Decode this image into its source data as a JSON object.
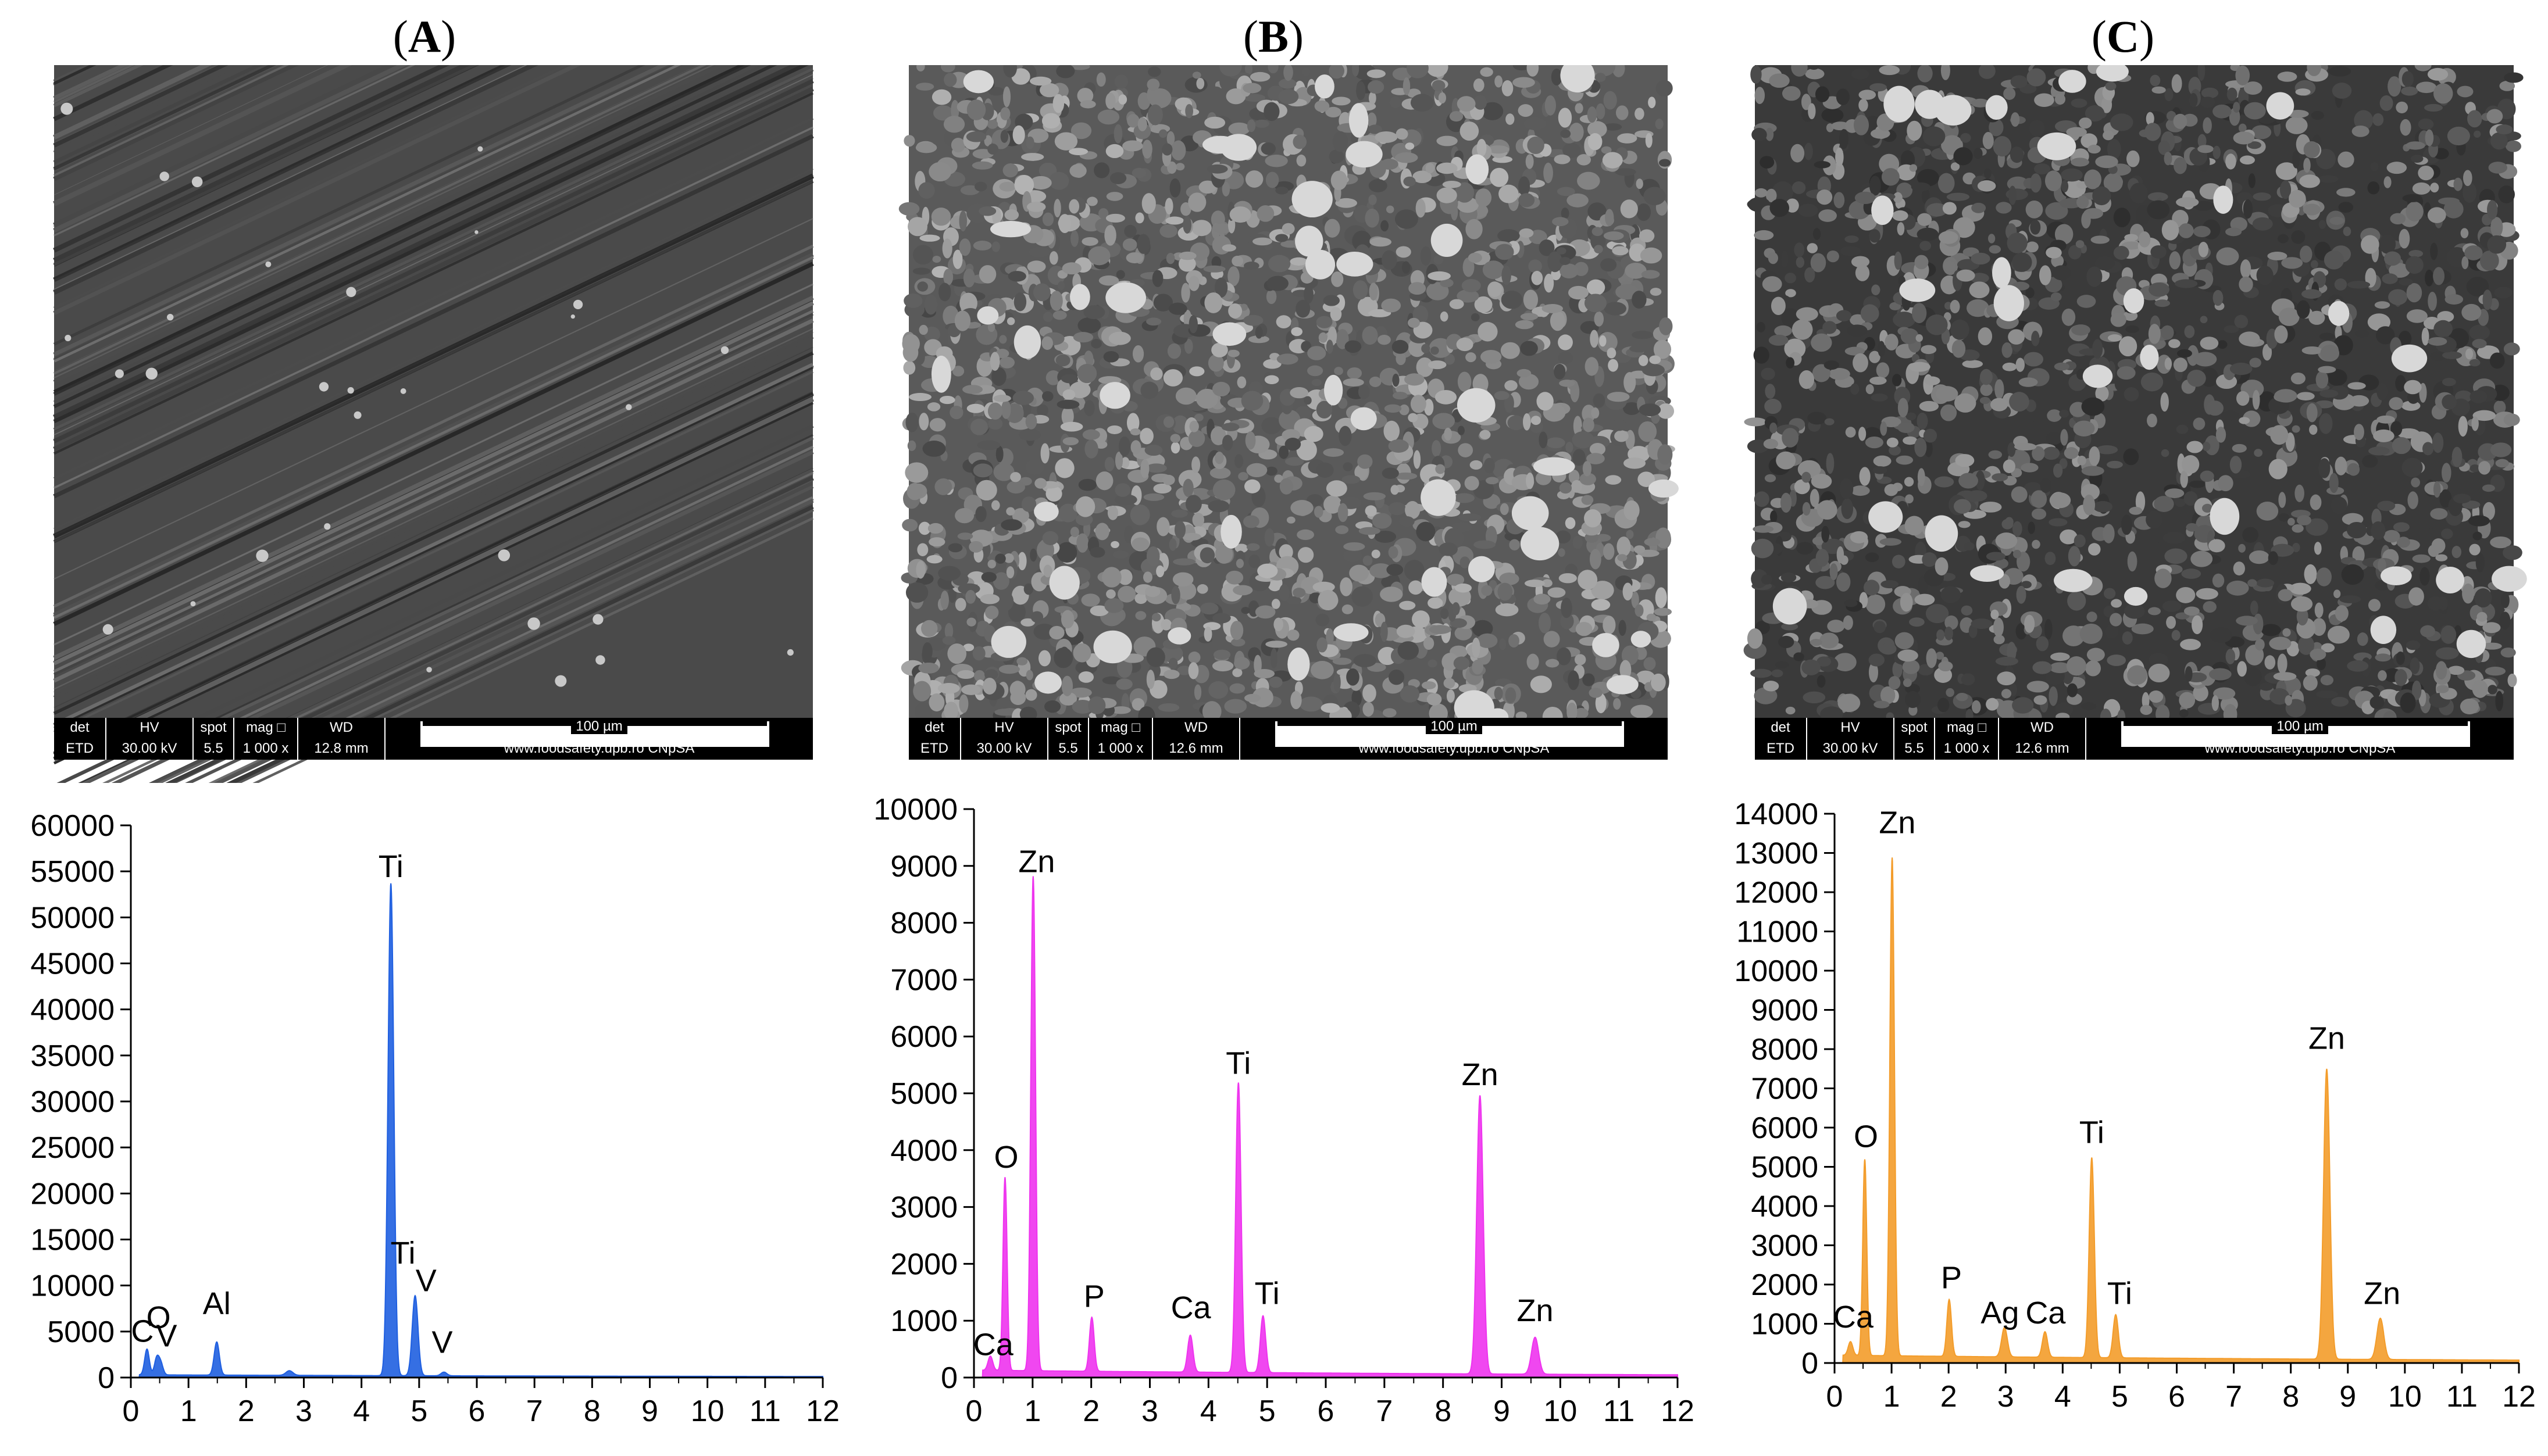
{
  "panels": [
    {
      "label": "A",
      "sem": {
        "det": "det",
        "det_val": "ETD",
        "hv": "HV",
        "hv_val": "30.00 kV",
        "spot": "spot",
        "spot_val": "5.5",
        "mag": "mag □",
        "mag_val": "1 000 x",
        "wd": "WD",
        "wd_val": "12.8 mm",
        "scale": "100 µm",
        "footer": "www.foodsafety.upb.ro CNpSA"
      },
      "color": "#1f5fe0"
    },
    {
      "label": "B",
      "sem": {
        "det": "det",
        "det_val": "ETD",
        "hv": "HV",
        "hv_val": "30.00 kV",
        "spot": "spot",
        "spot_val": "5.5",
        "mag": "mag □",
        "mag_val": "1 000 x",
        "wd": "WD",
        "wd_val": "12.6 mm",
        "scale": "100 µm",
        "footer": "www.foodsafety.upb.ro CNpSA"
      },
      "color": "#ee33ee"
    },
    {
      "label": "C",
      "sem": {
        "det": "det",
        "det_val": "ETD",
        "hv": "HV",
        "hv_val": "30.00 kV",
        "spot": "spot",
        "spot_val": "5.5",
        "mag": "mag □",
        "mag_val": "1 000 x",
        "wd": "WD",
        "wd_val": "12.6 mm",
        "scale": "100 µm",
        "footer": "www.foodsafety.upb.ro CNpSA"
      },
      "color": "#f39c2a"
    }
  ],
  "chart_data": [
    {
      "type": "area",
      "panel": "A",
      "xlabel": "",
      "ylabel": "",
      "xlim": [
        0,
        12
      ],
      "ylim": [
        0,
        60000
      ],
      "xticks": [
        0,
        1,
        2,
        3,
        4,
        5,
        6,
        7,
        8,
        9,
        10,
        11,
        12
      ],
      "yticks": [
        0,
        5000,
        10000,
        15000,
        20000,
        25000,
        30000,
        35000,
        40000,
        45000,
        50000,
        55000,
        60000
      ],
      "peaks": [
        {
          "x": 0.28,
          "y": 2800,
          "width": 0.04
        },
        {
          "x": 0.45,
          "y": 1800,
          "width": 0.04
        },
        {
          "x": 0.52,
          "y": 1200,
          "width": 0.04
        },
        {
          "x": 1.49,
          "y": 3600,
          "width": 0.045
        },
        {
          "x": 2.75,
          "y": 500,
          "width": 0.06
        },
        {
          "x": 4.51,
          "y": 53500,
          "width": 0.05
        },
        {
          "x": 4.93,
          "y": 8700,
          "width": 0.05
        },
        {
          "x": 5.43,
          "y": 400,
          "width": 0.05
        }
      ],
      "baseline": 300,
      "annotations": [
        {
          "text": "Ti",
          "x": 4.51,
          "y": 53500
        },
        {
          "text": "Ti",
          "x": 4.72,
          "y": 11500
        },
        {
          "text": "V",
          "x": 5.12,
          "y": 8500
        },
        {
          "text": "Al",
          "x": 1.49,
          "y": 6000
        },
        {
          "text": "O",
          "x": 0.48,
          "y": 4500
        },
        {
          "text": "C",
          "x": 0.2,
          "y": 3000
        },
        {
          "text": "V",
          "x": 0.62,
          "y": 2500
        },
        {
          "text": "V",
          "x": 5.4,
          "y": 1800
        }
      ]
    },
    {
      "type": "area",
      "panel": "B",
      "xlabel": "",
      "ylabel": "",
      "xlim": [
        0,
        12
      ],
      "ylim": [
        0,
        10000
      ],
      "xticks": [
        0,
        1,
        2,
        3,
        4,
        5,
        6,
        7,
        8,
        9,
        10,
        11,
        12
      ],
      "yticks": [
        0,
        1000,
        2000,
        3000,
        4000,
        5000,
        6000,
        7000,
        8000,
        9000,
        10000
      ],
      "peaks": [
        {
          "x": 0.28,
          "y": 250,
          "width": 0.04
        },
        {
          "x": 0.53,
          "y": 3400,
          "width": 0.035
        },
        {
          "x": 1.01,
          "y": 8700,
          "width": 0.04
        },
        {
          "x": 2.01,
          "y": 950,
          "width": 0.04
        },
        {
          "x": 3.69,
          "y": 650,
          "width": 0.045
        },
        {
          "x": 4.51,
          "y": 5100,
          "width": 0.045
        },
        {
          "x": 4.93,
          "y": 1000,
          "width": 0.045
        },
        {
          "x": 8.63,
          "y": 4900,
          "width": 0.055
        },
        {
          "x": 9.57,
          "y": 650,
          "width": 0.06
        }
      ],
      "baseline": 130,
      "annotations": [
        {
          "text": "Zn",
          "x": 1.07,
          "y": 8750
        },
        {
          "text": "O",
          "x": 0.55,
          "y": 3550
        },
        {
          "text": "P",
          "x": 2.05,
          "y": 1100
        },
        {
          "text": "Ca",
          "x": 3.7,
          "y": 900
        },
        {
          "text": "Ti",
          "x": 4.51,
          "y": 5200
        },
        {
          "text": "Ti",
          "x": 5.0,
          "y": 1150
        },
        {
          "text": "Zn",
          "x": 8.63,
          "y": 5000
        },
        {
          "text": "Zn",
          "x": 9.57,
          "y": 850
        },
        {
          "text": "Ca",
          "x": 0.33,
          "y": 250
        }
      ]
    },
    {
      "type": "area",
      "panel": "C",
      "xlabel": "",
      "ylabel": "",
      "xlim": [
        0,
        12
      ],
      "ylim": [
        0,
        14000
      ],
      "xticks": [
        0,
        1,
        2,
        3,
        4,
        5,
        6,
        7,
        8,
        9,
        10,
        11,
        12
      ],
      "yticks": [
        0,
        1000,
        2000,
        3000,
        4000,
        5000,
        6000,
        7000,
        8000,
        9000,
        10000,
        11000,
        12000,
        13000,
        14000
      ],
      "peaks": [
        {
          "x": 0.28,
          "y": 350,
          "width": 0.04
        },
        {
          "x": 0.53,
          "y": 5000,
          "width": 0.035
        },
        {
          "x": 1.01,
          "y": 12700,
          "width": 0.04
        },
        {
          "x": 2.01,
          "y": 1450,
          "width": 0.04
        },
        {
          "x": 2.98,
          "y": 750,
          "width": 0.05
        },
        {
          "x": 3.69,
          "y": 650,
          "width": 0.045
        },
        {
          "x": 4.51,
          "y": 5100,
          "width": 0.045
        },
        {
          "x": 4.93,
          "y": 1100,
          "width": 0.045
        },
        {
          "x": 8.63,
          "y": 7400,
          "width": 0.055
        },
        {
          "x": 9.57,
          "y": 1050,
          "width": 0.06
        }
      ],
      "baseline": 200,
      "annotations": [
        {
          "text": "Zn",
          "x": 1.1,
          "y": 13300
        },
        {
          "text": "O",
          "x": 0.55,
          "y": 5300
        },
        {
          "text": "P",
          "x": 2.05,
          "y": 1700
        },
        {
          "text": "Ag",
          "x": 2.9,
          "y": 800
        },
        {
          "text": "Ca",
          "x": 3.7,
          "y": 800
        },
        {
          "text": "Ti",
          "x": 4.51,
          "y": 5400
        },
        {
          "text": "Ti",
          "x": 5.0,
          "y": 1300
        },
        {
          "text": "Zn",
          "x": 8.63,
          "y": 7800
        },
        {
          "text": "Zn",
          "x": 9.6,
          "y": 1300
        },
        {
          "text": "Ca",
          "x": 0.33,
          "y": 700
        }
      ]
    }
  ]
}
